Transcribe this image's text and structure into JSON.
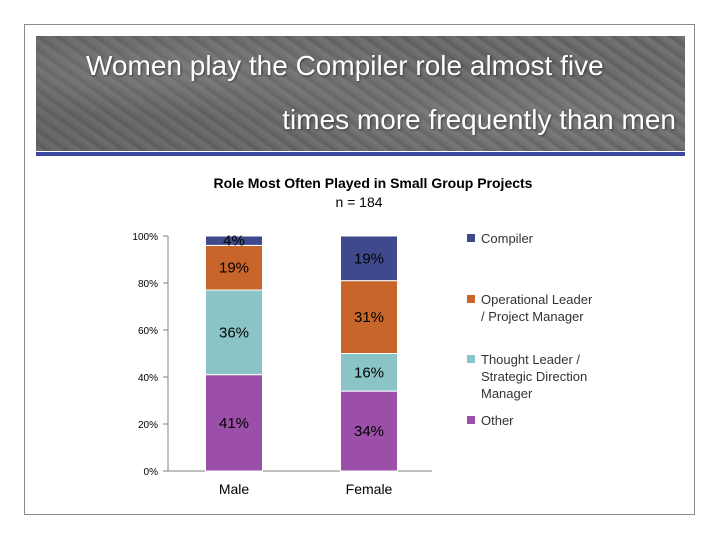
{
  "slide": {
    "title_line1": "Women play the Compiler role almost five",
    "title_line2": "times more frequently than men"
  },
  "chart_data": {
    "type": "bar",
    "stacked": true,
    "title": "Role Most Often Played in Small Group Projects",
    "subtitle": "n = 184",
    "categories": [
      "Male",
      "Female"
    ],
    "series": [
      {
        "name": "Other",
        "values": [
          41,
          34
        ],
        "labels": [
          "41%",
          "34%"
        ],
        "color": "#9b4fa8"
      },
      {
        "name": "Thought Leader / Strategic Direction Manager",
        "values": [
          36,
          16
        ],
        "labels": [
          "36%",
          "16%"
        ],
        "color": "#8ac4c6"
      },
      {
        "name": "Operational Leader / Project Manager",
        "values": [
          19,
          31
        ],
        "labels": [
          "19%",
          "31%"
        ],
        "color": "#c8652a"
      },
      {
        "name": "Compiler",
        "values": [
          4,
          19
        ],
        "labels": [
          "4%",
          "19%"
        ],
        "color": "#3f4a8c"
      }
    ],
    "legend": [
      {
        "key": "compiler",
        "lines": [
          "Compiler"
        ],
        "color": "#3f4a8c"
      },
      {
        "key": "operational",
        "lines": [
          "Operational Leader",
          "/ Project Manager"
        ],
        "color": "#c8652a"
      },
      {
        "key": "thought",
        "lines": [
          "Thought Leader /",
          "Strategic Direction",
          "Manager"
        ],
        "color": "#8ac4c6"
      },
      {
        "key": "other",
        "lines": [
          "Other"
        ],
        "color": "#9b4fa8"
      }
    ],
    "yticks": [
      "0%",
      "20%",
      "40%",
      "60%",
      "80%",
      "100%"
    ],
    "ylim": [
      0,
      100
    ]
  }
}
